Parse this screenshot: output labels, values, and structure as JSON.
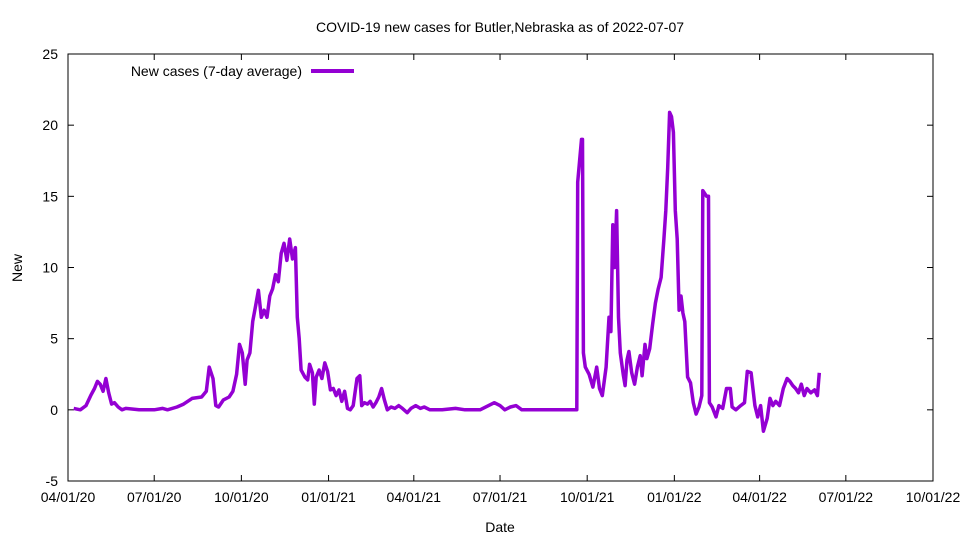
{
  "chart_data": {
    "type": "line",
    "title": "COVID-19 new cases for Butler,Nebraska as of 2022-07-07",
    "xlabel": "Date",
    "ylabel": "New",
    "x_ticks": [
      "04/01/20",
      "07/01/20",
      "10/01/20",
      "01/01/21",
      "04/01/21",
      "07/01/21",
      "10/01/21",
      "01/01/22",
      "04/01/22",
      "07/01/22",
      "10/01/22"
    ],
    "y_ticks": [
      "-5",
      "0",
      "5",
      "10",
      "15",
      "20",
      "25"
    ],
    "xlim": [
      "2020-04-01",
      "2022-10-01"
    ],
    "ylim": [
      -5,
      25
    ],
    "grid": false,
    "legend_position": "top-left",
    "series": [
      {
        "name": "New cases (7-day average)",
        "color": "#9400d3",
        "points": [
          [
            "2020-04-07",
            0.1
          ],
          [
            "2020-04-14",
            0.0
          ],
          [
            "2020-04-20",
            0.3
          ],
          [
            "2020-04-25",
            1.0
          ],
          [
            "2020-04-29",
            1.5
          ],
          [
            "2020-05-02",
            2.0
          ],
          [
            "2020-05-05",
            1.8
          ],
          [
            "2020-05-08",
            1.3
          ],
          [
            "2020-05-11",
            2.2
          ],
          [
            "2020-05-14",
            1.2
          ],
          [
            "2020-05-17",
            0.4
          ],
          [
            "2020-05-20",
            0.5
          ],
          [
            "2020-05-24",
            0.2
          ],
          [
            "2020-05-28",
            0.0
          ],
          [
            "2020-06-01",
            0.1
          ],
          [
            "2020-06-15",
            0.0
          ],
          [
            "2020-07-01",
            0.0
          ],
          [
            "2020-07-10",
            0.1
          ],
          [
            "2020-07-15",
            0.0
          ],
          [
            "2020-07-25",
            0.2
          ],
          [
            "2020-08-01",
            0.4
          ],
          [
            "2020-08-10",
            0.8
          ],
          [
            "2020-08-20",
            0.9
          ],
          [
            "2020-08-25",
            1.3
          ],
          [
            "2020-08-28",
            3.0
          ],
          [
            "2020-09-01",
            2.2
          ],
          [
            "2020-09-04",
            0.3
          ],
          [
            "2020-09-07",
            0.2
          ],
          [
            "2020-09-12",
            0.7
          ],
          [
            "2020-09-18",
            0.9
          ],
          [
            "2020-09-22",
            1.3
          ],
          [
            "2020-09-26",
            2.5
          ],
          [
            "2020-09-29",
            4.6
          ],
          [
            "2020-10-02",
            4.0
          ],
          [
            "2020-10-05",
            1.8
          ],
          [
            "2020-10-07",
            3.5
          ],
          [
            "2020-10-10",
            4.0
          ],
          [
            "2020-10-13",
            6.2
          ],
          [
            "2020-10-16",
            7.3
          ],
          [
            "2020-10-19",
            8.4
          ],
          [
            "2020-10-22",
            6.5
          ],
          [
            "2020-10-25",
            7.0
          ],
          [
            "2020-10-28",
            6.5
          ],
          [
            "2020-10-31",
            8.0
          ],
          [
            "2020-11-03",
            8.5
          ],
          [
            "2020-11-06",
            9.5
          ],
          [
            "2020-11-09",
            9.0
          ],
          [
            "2020-11-12",
            11.0
          ],
          [
            "2020-11-15",
            11.7
          ],
          [
            "2020-11-18",
            10.5
          ],
          [
            "2020-11-21",
            12.0
          ],
          [
            "2020-11-24",
            10.6
          ],
          [
            "2020-11-27",
            11.4
          ],
          [
            "2020-11-29",
            6.5
          ],
          [
            "2020-12-01",
            5.0
          ],
          [
            "2020-12-03",
            2.8
          ],
          [
            "2020-12-07",
            2.3
          ],
          [
            "2020-12-10",
            2.1
          ],
          [
            "2020-12-12",
            3.2
          ],
          [
            "2020-12-15",
            2.6
          ],
          [
            "2020-12-17",
            0.4
          ],
          [
            "2020-12-19",
            2.3
          ],
          [
            "2020-12-22",
            2.8
          ],
          [
            "2020-12-25",
            2.2
          ],
          [
            "2020-12-28",
            3.3
          ],
          [
            "2020-12-31",
            2.7
          ],
          [
            "2021-01-03",
            1.4
          ],
          [
            "2021-01-06",
            1.5
          ],
          [
            "2021-01-09",
            1.0
          ],
          [
            "2021-01-12",
            1.4
          ],
          [
            "2021-01-15",
            0.6
          ],
          [
            "2021-01-18",
            1.3
          ],
          [
            "2021-01-21",
            0.1
          ],
          [
            "2021-01-24",
            0.0
          ],
          [
            "2021-01-27",
            0.3
          ],
          [
            "2021-01-31",
            2.2
          ],
          [
            "2021-02-03",
            2.4
          ],
          [
            "2021-02-05",
            0.3
          ],
          [
            "2021-02-08",
            0.5
          ],
          [
            "2021-02-11",
            0.4
          ],
          [
            "2021-02-14",
            0.6
          ],
          [
            "2021-02-17",
            0.2
          ],
          [
            "2021-02-20",
            0.5
          ],
          [
            "2021-02-23",
            0.9
          ],
          [
            "2021-02-26",
            1.5
          ],
          [
            "2021-03-01",
            0.7
          ],
          [
            "2021-03-04",
            0.0
          ],
          [
            "2021-03-08",
            0.2
          ],
          [
            "2021-03-12",
            0.1
          ],
          [
            "2021-03-16",
            0.3
          ],
          [
            "2021-03-20",
            0.1
          ],
          [
            "2021-03-25",
            -0.2
          ],
          [
            "2021-03-29",
            0.1
          ],
          [
            "2021-04-03",
            0.3
          ],
          [
            "2021-04-08",
            0.1
          ],
          [
            "2021-04-12",
            0.2
          ],
          [
            "2021-04-18",
            0.0
          ],
          [
            "2021-05-01",
            0.0
          ],
          [
            "2021-05-15",
            0.1
          ],
          [
            "2021-05-25",
            0.0
          ],
          [
            "2021-06-10",
            0.0
          ],
          [
            "2021-06-25",
            0.5
          ],
          [
            "2021-07-01",
            0.3
          ],
          [
            "2021-07-06",
            0.0
          ],
          [
            "2021-07-12",
            0.2
          ],
          [
            "2021-07-18",
            0.3
          ],
          [
            "2021-07-24",
            0.0
          ],
          [
            "2021-08-15",
            0.0
          ],
          [
            "2021-09-08",
            0.0
          ],
          [
            "2021-09-20",
            0.0
          ],
          [
            "2021-09-21",
            16.0
          ],
          [
            "2021-09-23",
            17.5
          ],
          [
            "2021-09-25",
            19.0
          ],
          [
            "2021-09-26",
            19.0
          ],
          [
            "2021-09-27",
            4.0
          ],
          [
            "2021-09-29",
            3.0
          ],
          [
            "2021-10-03",
            2.5
          ],
          [
            "2021-10-07",
            1.6
          ],
          [
            "2021-10-11",
            3.0
          ],
          [
            "2021-10-14",
            1.5
          ],
          [
            "2021-10-17",
            1.0
          ],
          [
            "2021-10-21",
            3.0
          ],
          [
            "2021-10-24",
            6.5
          ],
          [
            "2021-10-26",
            5.5
          ],
          [
            "2021-10-28",
            13.0
          ],
          [
            "2021-10-30",
            10.0
          ],
          [
            "2021-11-01",
            14.0
          ],
          [
            "2021-11-03",
            6.5
          ],
          [
            "2021-11-05",
            4.0
          ],
          [
            "2021-11-08",
            2.5
          ],
          [
            "2021-11-10",
            1.7
          ],
          [
            "2021-11-12",
            3.5
          ],
          [
            "2021-11-14",
            4.1
          ],
          [
            "2021-11-17",
            2.6
          ],
          [
            "2021-11-20",
            1.8
          ],
          [
            "2021-11-23",
            3.0
          ],
          [
            "2021-11-26",
            3.8
          ],
          [
            "2021-11-28",
            2.4
          ],
          [
            "2021-12-01",
            4.6
          ],
          [
            "2021-12-03",
            3.6
          ],
          [
            "2021-12-06",
            4.3
          ],
          [
            "2021-12-09",
            6.0
          ],
          [
            "2021-12-12",
            7.5
          ],
          [
            "2021-12-15",
            8.5
          ],
          [
            "2021-12-18",
            9.3
          ],
          [
            "2021-12-21",
            12.0
          ],
          [
            "2021-12-23",
            14.0
          ],
          [
            "2021-12-25",
            17.0
          ],
          [
            "2021-12-27",
            20.9
          ],
          [
            "2021-12-29",
            20.6
          ],
          [
            "2021-12-31",
            19.5
          ],
          [
            "2022-01-02",
            14.0
          ],
          [
            "2022-01-04",
            12.0
          ],
          [
            "2022-01-06",
            7.0
          ],
          [
            "2022-01-08",
            8.0
          ],
          [
            "2022-01-10",
            6.8
          ],
          [
            "2022-01-12",
            6.2
          ],
          [
            "2022-01-15",
            2.3
          ],
          [
            "2022-01-18",
            1.9
          ],
          [
            "2022-01-21",
            0.5
          ],
          [
            "2022-01-24",
            -0.3
          ],
          [
            "2022-01-27",
            0.2
          ],
          [
            "2022-01-30",
            1.0
          ],
          [
            "2022-01-31",
            15.4
          ],
          [
            "2022-02-02",
            15.2
          ],
          [
            "2022-02-04",
            15.0
          ],
          [
            "2022-02-06",
            15.0
          ],
          [
            "2022-02-07",
            0.5
          ],
          [
            "2022-02-10",
            0.2
          ],
          [
            "2022-02-14",
            -0.5
          ],
          [
            "2022-02-17",
            0.3
          ],
          [
            "2022-02-21",
            0.1
          ],
          [
            "2022-02-25",
            1.5
          ],
          [
            "2022-03-01",
            1.5
          ],
          [
            "2022-03-03",
            0.2
          ],
          [
            "2022-03-07",
            0.0
          ],
          [
            "2022-03-12",
            0.3
          ],
          [
            "2022-03-16",
            0.5
          ],
          [
            "2022-03-19",
            2.7
          ],
          [
            "2022-03-23",
            2.6
          ],
          [
            "2022-03-27",
            0.3
          ],
          [
            "2022-03-30",
            -0.5
          ],
          [
            "2022-04-02",
            0.3
          ],
          [
            "2022-04-05",
            -1.5
          ],
          [
            "2022-04-09",
            -0.6
          ],
          [
            "2022-04-12",
            0.8
          ],
          [
            "2022-04-15",
            0.3
          ],
          [
            "2022-04-18",
            0.6
          ],
          [
            "2022-04-22",
            0.3
          ],
          [
            "2022-04-26",
            1.5
          ],
          [
            "2022-04-30",
            2.2
          ],
          [
            "2022-05-03",
            2.0
          ],
          [
            "2022-05-06",
            1.7
          ],
          [
            "2022-05-09",
            1.5
          ],
          [
            "2022-05-12",
            1.2
          ],
          [
            "2022-05-15",
            1.8
          ],
          [
            "2022-05-18",
            1.0
          ],
          [
            "2022-05-21",
            1.5
          ],
          [
            "2022-05-25",
            1.2
          ],
          [
            "2022-05-29",
            1.4
          ],
          [
            "2022-06-01",
            1.0
          ],
          [
            "2022-06-03",
            2.6
          ]
        ]
      }
    ]
  }
}
